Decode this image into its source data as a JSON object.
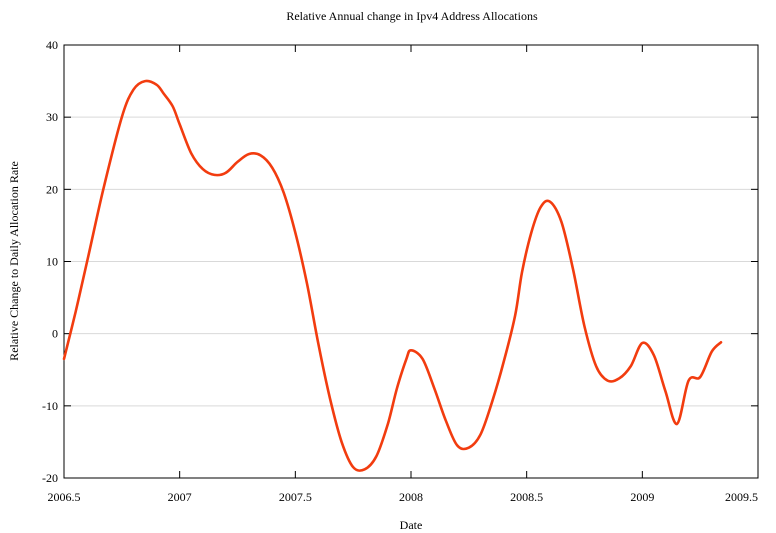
{
  "chart_data": {
    "type": "line",
    "title": "Relative Annual change in Ipv4 Address Allocations",
    "xlabel": "Date",
    "ylabel": "Relative Change to Daily Allocation Rate",
    "xlim": [
      2006.5,
      2009.5
    ],
    "ylim": [
      -20,
      40
    ],
    "xticks": [
      "2006.5",
      "2007",
      "2007.5",
      "2008",
      "2008.5",
      "2009",
      "2009.5"
    ],
    "yticks": [
      "-20",
      "-10",
      "0",
      "10",
      "20",
      "30",
      "40"
    ],
    "grid": "horizontal",
    "line_color": "#f23c0f",
    "series": [
      {
        "x": [
          2006.5,
          2006.55,
          2006.6,
          2006.67,
          2006.75,
          2006.8,
          2006.85,
          2006.9,
          2006.93,
          2006.97,
          2007.0,
          2007.05,
          2007.1,
          2007.15,
          2007.2,
          2007.25,
          2007.3,
          2007.35,
          2007.4,
          2007.45,
          2007.5,
          2007.55,
          2007.6,
          2007.65,
          2007.7,
          2007.75,
          2007.8,
          2007.85,
          2007.9,
          2007.94,
          2007.98,
          2008.0,
          2008.05,
          2008.1,
          2008.15,
          2008.2,
          2008.25,
          2008.3,
          2008.35,
          2008.4,
          2008.45,
          2008.48,
          2008.52,
          2008.56,
          2008.6,
          2008.65,
          2008.7,
          2008.75,
          2008.8,
          2008.85,
          2008.9,
          2008.95,
          2009.0,
          2009.05,
          2009.1,
          2009.15,
          2009.2,
          2009.25,
          2009.3,
          2009.34
        ],
        "y": [
          -3.5,
          3.0,
          10.0,
          20.0,
          30.0,
          33.8,
          35.0,
          34.5,
          33.3,
          31.5,
          29.0,
          25.0,
          22.8,
          22.0,
          22.3,
          23.8,
          24.9,
          24.7,
          23.0,
          19.5,
          14.0,
          7.0,
          -1.5,
          -9.0,
          -15.0,
          -18.5,
          -18.8,
          -17.0,
          -12.5,
          -7.5,
          -3.5,
          -2.3,
          -3.5,
          -7.5,
          -12.0,
          -15.5,
          -15.8,
          -14.0,
          -9.5,
          -4.0,
          2.5,
          8.5,
          14.0,
          17.5,
          18.3,
          15.5,
          9.0,
          1.0,
          -4.5,
          -6.5,
          -6.2,
          -4.5,
          -1.3,
          -3.0,
          -8.0,
          -12.5,
          -6.5,
          -6.0,
          -2.5,
          -1.2
        ]
      }
    ]
  }
}
